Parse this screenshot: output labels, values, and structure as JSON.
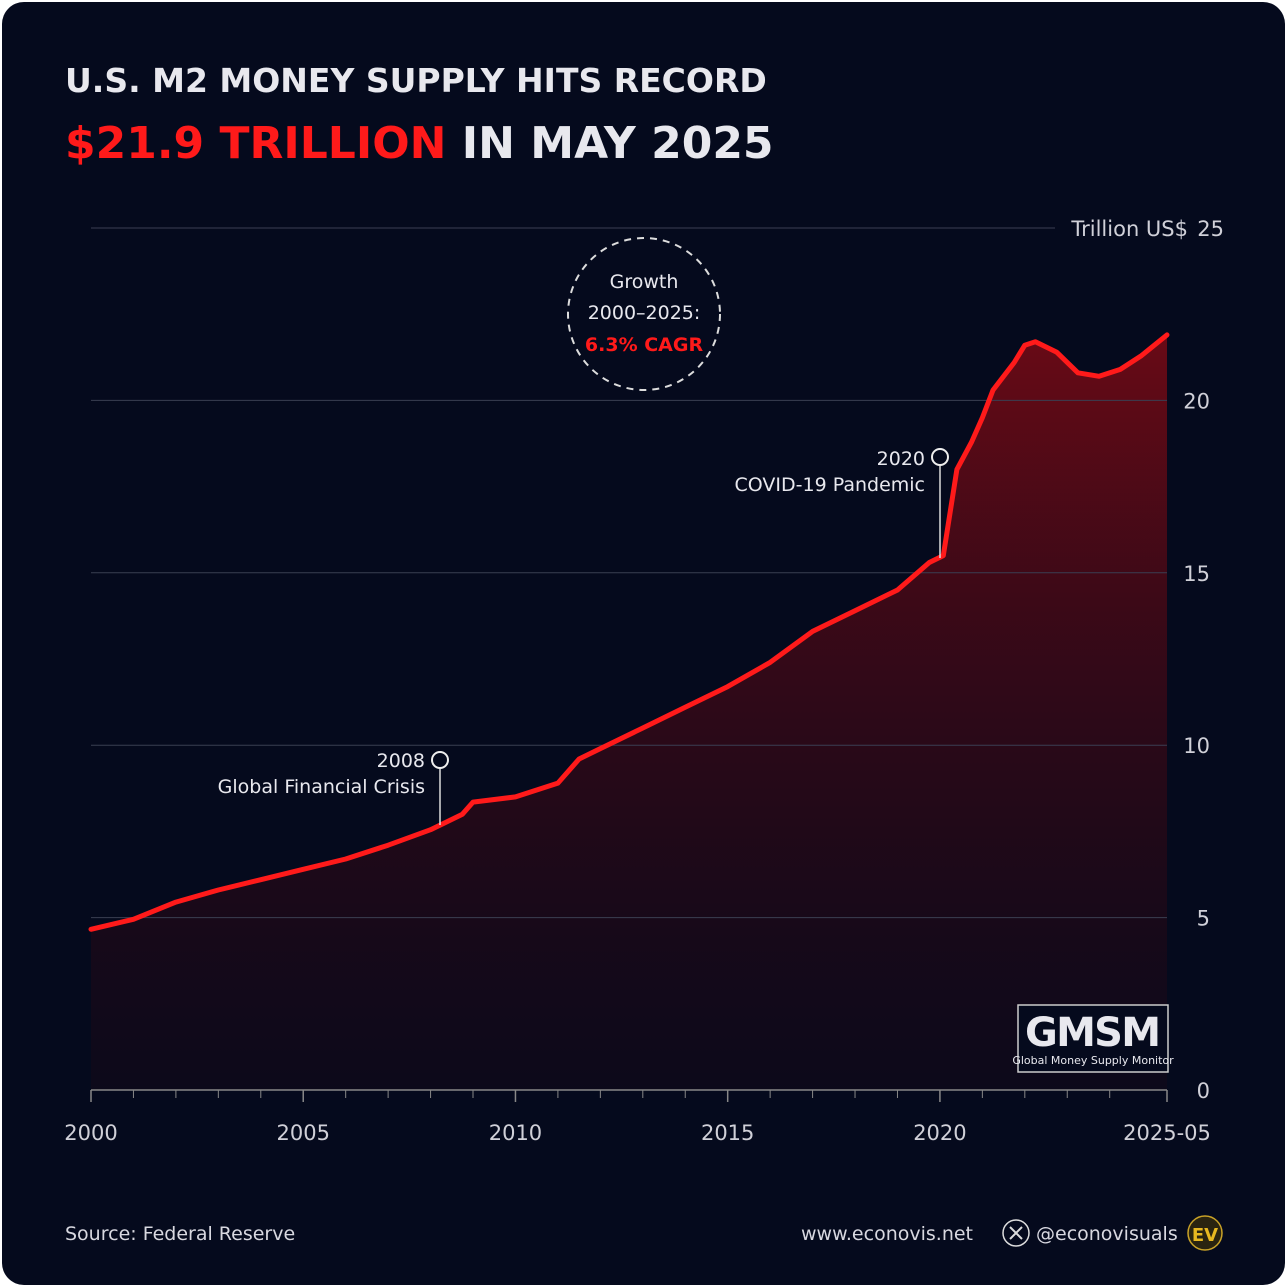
{
  "chart_data": {
    "type": "area",
    "title": "U.S. M2 MONEY SUPPLY HITS RECORD",
    "subtitle_highlight": "$21.9 TRILLION",
    "subtitle_rest": "IN MAY 2025",
    "y_label": "Trillion US$",
    "color": "#ff1a1a",
    "x": [
      2000,
      2001,
      2002,
      2003,
      2004,
      2005,
      2006,
      2007,
      2008,
      2008.75,
      2009,
      2010,
      2011,
      2011.5,
      2012,
      2013,
      2014,
      2015,
      2016,
      2017,
      2018,
      2019,
      2019.75,
      2020.08,
      2020.4,
      2020.75,
      2021,
      2021.25,
      2021.75,
      2022,
      2022.25,
      2022.75,
      2023.25,
      2023.75,
      2024.25,
      2024.75,
      2025.35
    ],
    "values": [
      4.66,
      4.95,
      5.45,
      5.8,
      6.1,
      6.4,
      6.7,
      7.1,
      7.55,
      8.0,
      8.35,
      8.5,
      8.9,
      9.6,
      9.9,
      10.5,
      11.1,
      11.7,
      12.4,
      13.3,
      13.9,
      14.5,
      15.3,
      15.5,
      18.0,
      18.8,
      19.5,
      20.3,
      21.1,
      21.6,
      21.7,
      21.4,
      20.8,
      20.7,
      20.9,
      21.3,
      21.9
    ],
    "xlim": [
      2000,
      2025.35
    ],
    "xticks": [
      2000,
      2005,
      2010,
      2015,
      2020,
      {
        "value": 2025.35,
        "label": "2025-05"
      }
    ],
    "xminorticks": [
      2001,
      2002,
      2003,
      2004,
      2006,
      2007,
      2008,
      2009,
      2011,
      2012,
      2013,
      2014,
      2016,
      2017,
      2018,
      2019,
      2021,
      2022,
      2023,
      2024
    ],
    "ylim": [
      0,
      25
    ],
    "yticks": [
      0,
      5,
      10,
      15,
      20,
      25
    ],
    "grid": true,
    "annotations": [
      {
        "year": "2008",
        "text": "Global Financial Crisis"
      },
      {
        "year": "2020",
        "text": "COVID-19 Pandemic"
      }
    ],
    "growth": {
      "title": "Growth",
      "period": "2000–2025:",
      "value": "6.3% CAGR"
    },
    "logo": {
      "name": "GMSM",
      "full": "Global Money Supply Monitor"
    },
    "source": "Source: Federal Reserve",
    "website": "www.econovis.net",
    "handle": "@econovisuals",
    "brand": "EV"
  }
}
